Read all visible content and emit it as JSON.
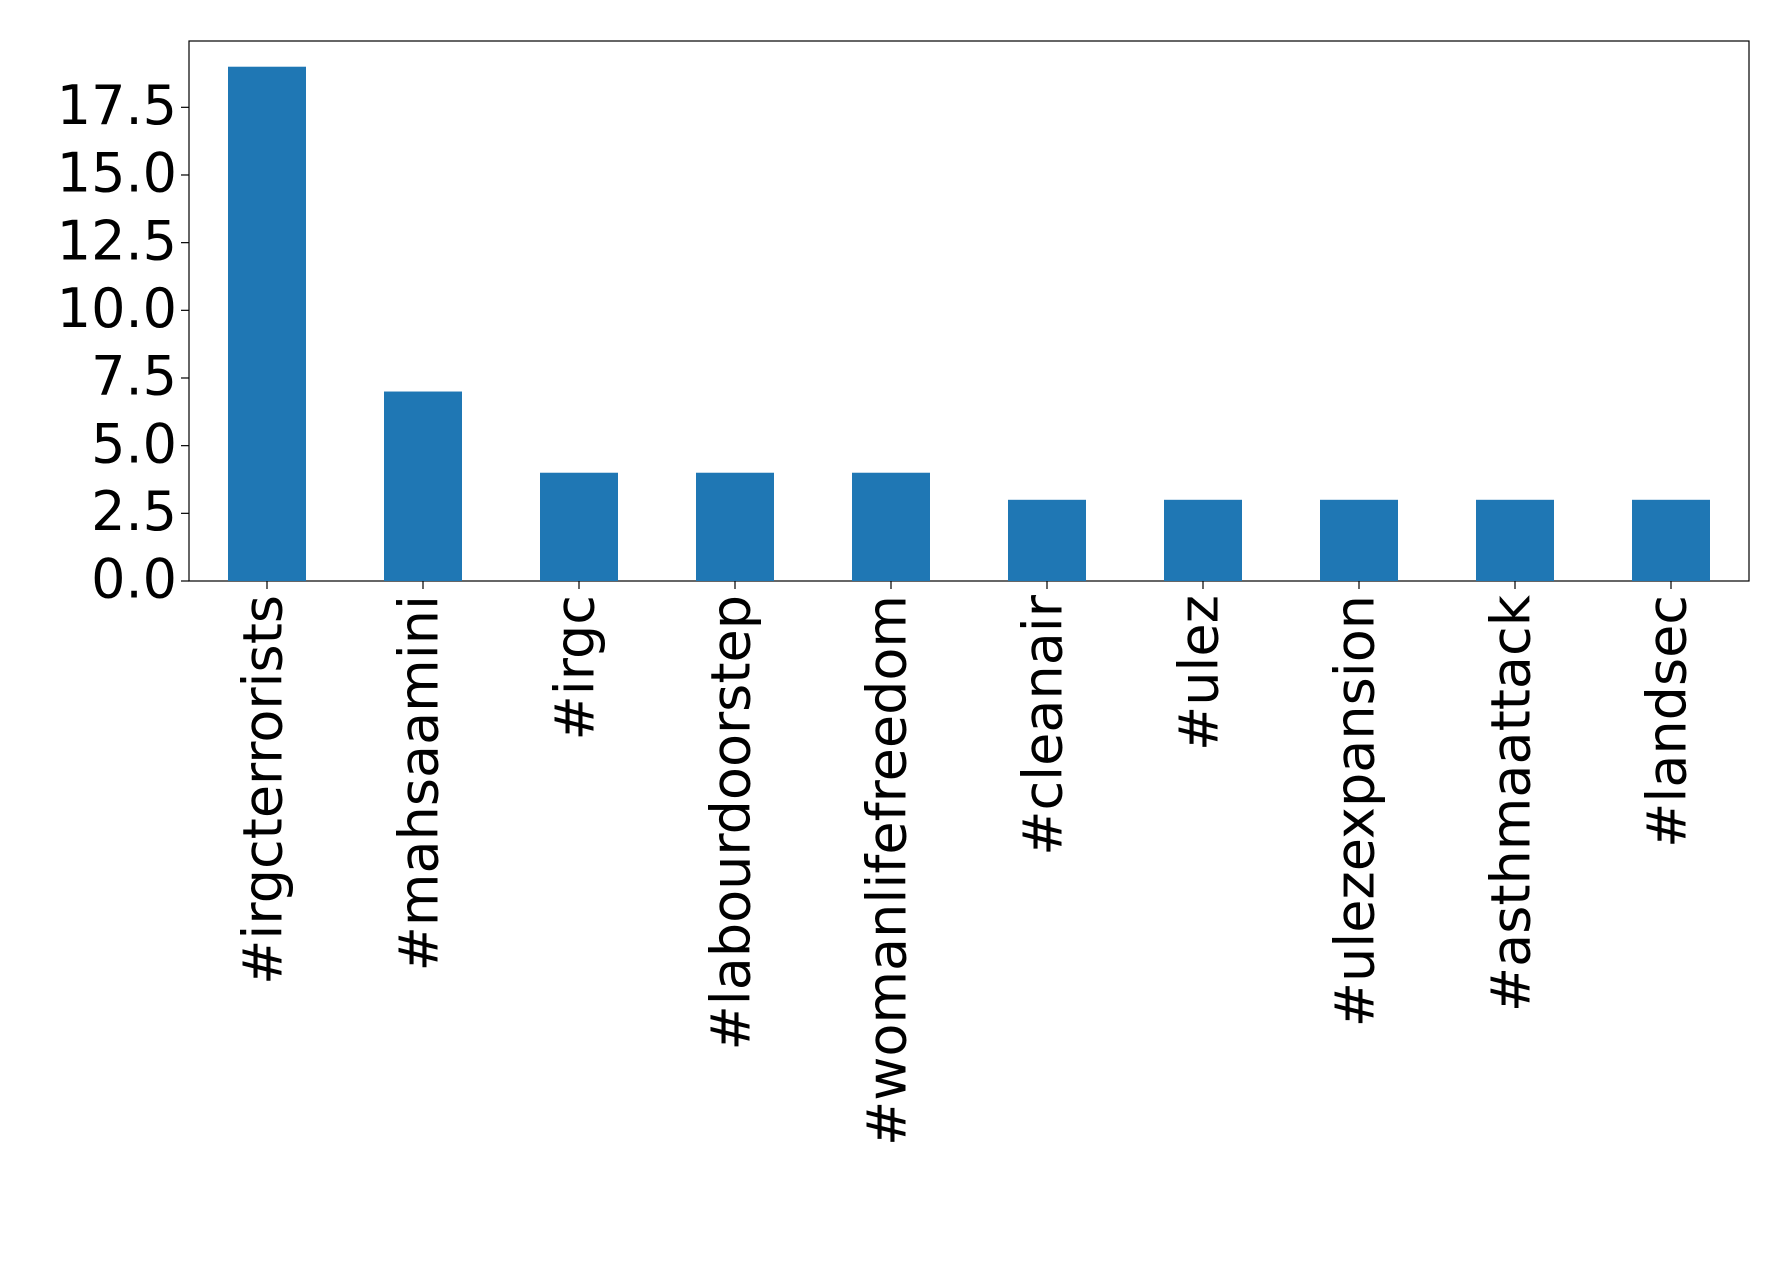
{
  "chart_data": {
    "type": "bar",
    "categories": [
      "#irgcterrorists",
      "#mahsaamini",
      "#irgc",
      "#labourdoorstep",
      "#womanlifefreedom",
      "#cleanair",
      "#ulez",
      "#ulezexpansion",
      "#asthmaattack",
      "#landsec"
    ],
    "values": [
      19,
      7,
      4,
      4,
      4,
      3,
      3,
      3,
      3,
      3
    ],
    "color": "#1f77b4",
    "ylim": [
      0,
      19.95
    ],
    "yticks": [
      {
        "value": 0,
        "label": "0.0"
      },
      {
        "value": 2.5,
        "label": "2.5"
      },
      {
        "value": 5,
        "label": "5.0"
      },
      {
        "value": 7.5,
        "label": "7.5"
      },
      {
        "value": 10,
        "label": "10.0"
      },
      {
        "value": 12.5,
        "label": "12.5"
      },
      {
        "value": 15,
        "label": "15.0"
      },
      {
        "value": 17.5,
        "label": "17.5"
      }
    ]
  }
}
